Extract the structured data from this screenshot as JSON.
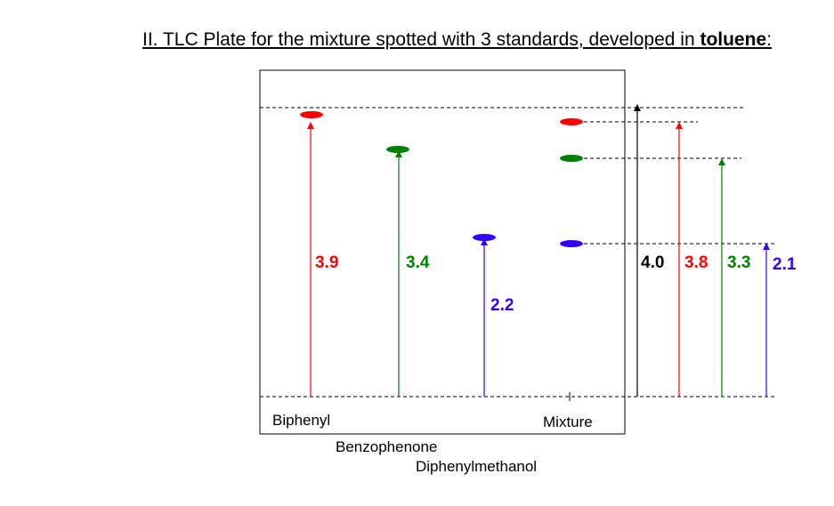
{
  "title": {
    "prefix": "II. TLC Plate for the mixture spotted with 3 standards, developed in ",
    "solvent": "toluene",
    "suffix": ":"
  },
  "colors": {
    "red": "#ff0000",
    "green": "#008000",
    "blue": "#3300ff",
    "black": "#000000"
  },
  "lanes": [
    {
      "label": "Biphenyl",
      "value": "3.9",
      "color": "red"
    },
    {
      "label": "Benzophenone",
      "value": "3.4",
      "color": "green"
    },
    {
      "label": "Diphenylmethanol",
      "value": "2.2",
      "color": "blue"
    },
    {
      "label": "Mixture"
    }
  ],
  "mixture_measurements": [
    {
      "value": "4.0",
      "color": "black"
    },
    {
      "value": "3.8",
      "color": "red"
    },
    {
      "value": "3.3",
      "color": "green"
    },
    {
      "value": "2.1",
      "color": "blue"
    }
  ]
}
